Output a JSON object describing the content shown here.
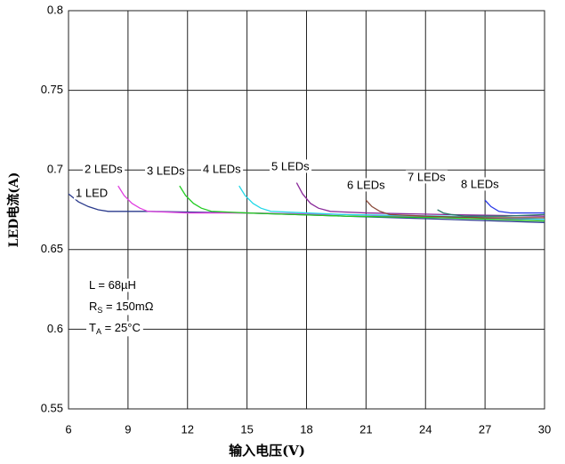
{
  "chart_data": {
    "type": "line",
    "xlabel": "输入电压(V)",
    "ylabel": "LED电流(A)",
    "xlim": [
      6,
      30
    ],
    "xticks": [
      6,
      9,
      12,
      15,
      18,
      21,
      24,
      27,
      30
    ],
    "ylim": [
      0.55,
      0.8
    ],
    "yticks": [
      0.55,
      0.6,
      0.65,
      0.7,
      0.75,
      0.8
    ],
    "grid": true,
    "series": [
      {
        "name": "1 LED",
        "color": "#2a3a8c",
        "x": [
          6,
          6.5,
          7,
          7.5,
          8,
          10,
          15,
          20,
          25,
          30
        ],
        "values": [
          0.685,
          0.68,
          0.677,
          0.675,
          0.674,
          0.674,
          0.673,
          0.671,
          0.669,
          0.667
        ]
      },
      {
        "name": "2 LEDs",
        "color": "#e040e0",
        "x": [
          8.5,
          8.8,
          9.2,
          9.6,
          10,
          12,
          15,
          20,
          25,
          30
        ],
        "values": [
          0.69,
          0.684,
          0.679,
          0.676,
          0.674,
          0.673,
          0.673,
          0.672,
          0.67,
          0.669
        ]
      },
      {
        "name": "3 LEDs",
        "color": "#22cc22",
        "x": [
          11.6,
          11.9,
          12.3,
          12.7,
          13.2,
          15,
          20,
          25,
          30
        ],
        "values": [
          0.69,
          0.684,
          0.679,
          0.676,
          0.674,
          0.673,
          0.671,
          0.67,
          0.668
        ]
      },
      {
        "name": "4 LEDs",
        "color": "#22d8e8",
        "x": [
          14.6,
          14.9,
          15.3,
          15.7,
          16.2,
          18,
          20,
          25,
          30
        ],
        "values": [
          0.69,
          0.684,
          0.679,
          0.676,
          0.674,
          0.673,
          0.672,
          0.671,
          0.669
        ]
      },
      {
        "name": "5 LEDs",
        "color": "#8a2a9a",
        "x": [
          17.5,
          17.8,
          18.2,
          18.6,
          19.2,
          21,
          25,
          30
        ],
        "values": [
          0.692,
          0.685,
          0.679,
          0.676,
          0.674,
          0.673,
          0.672,
          0.671
        ]
      },
      {
        "name": "6 LEDs",
        "color": "#8a4a3a",
        "x": [
          21,
          21.3,
          21.7,
          22.2,
          24,
          27,
          30
        ],
        "values": [
          0.681,
          0.677,
          0.674,
          0.672,
          0.671,
          0.67,
          0.67
        ]
      },
      {
        "name": "7 LEDs",
        "color": "#2a7a6a",
        "x": [
          24.6,
          24.9,
          25.3,
          26,
          28,
          30
        ],
        "values": [
          0.675,
          0.673,
          0.672,
          0.671,
          0.671,
          0.672
        ]
      },
      {
        "name": "8 LEDs",
        "color": "#2a3ae8",
        "x": [
          27,
          27.3,
          27.7,
          28.3,
          30
        ],
        "values": [
          0.681,
          0.677,
          0.674,
          0.673,
          0.673
        ]
      }
    ],
    "annotations": [
      {
        "base": "L = 68µH"
      },
      {
        "base": "R",
        "sub": "S",
        "rest": " = 150mΩ"
      },
      {
        "base": "T",
        "sub": "A",
        "rest": " = 25°C"
      }
    ]
  }
}
